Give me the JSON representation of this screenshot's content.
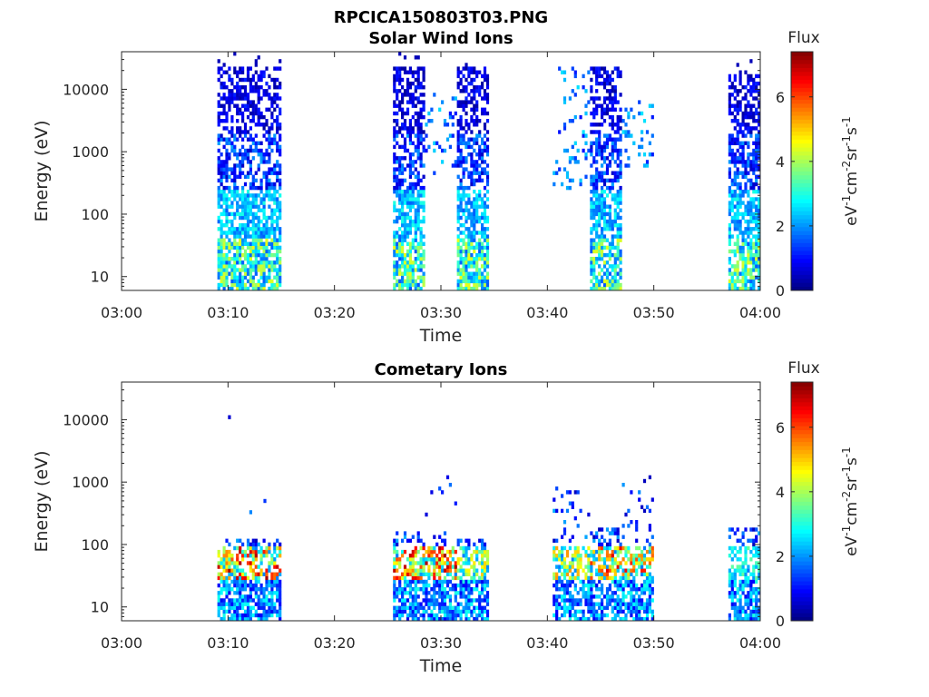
{
  "figure": {
    "title": "RPCICA150803T03.PNG"
  },
  "colors": {
    "background": "#ffffff",
    "axis": "#262626",
    "colormap": "jet"
  },
  "chart_data": [
    {
      "type": "heatmap",
      "title": "Solar Wind Ions",
      "xlabel": "Time",
      "ylabel": "Energy (eV)",
      "x_ticks": [
        "03:00",
        "03:10",
        "03:20",
        "03:30",
        "03:40",
        "03:50",
        "04:00"
      ],
      "xlim": [
        "03:00",
        "04:00"
      ],
      "y_scale": "log",
      "y_ticks": [
        "10",
        "100",
        "1000",
        "10000"
      ],
      "ylim": [
        6,
        40000
      ],
      "colorbar": {
        "title": "Flux",
        "label": "eV-1cm-2sr-1s-1",
        "ticks": [
          "0",
          "2",
          "4",
          "6"
        ],
        "range": [
          0,
          7.4
        ]
      },
      "seed": 11,
      "blocks": [
        {
          "t0": "03:09",
          "t1": "03:15",
          "kind": "sw",
          "emax": 24000
        },
        {
          "t0": "03:25:30",
          "t1": "03:28:30",
          "kind": "sw",
          "emax": 24000
        },
        {
          "t0": "03:28:30",
          "t1": "03:31:30",
          "kind": "sparse",
          "emin": 400,
          "emax": 9000
        },
        {
          "t0": "03:31:30",
          "t1": "03:34:30",
          "kind": "sw",
          "emax": 24000
        },
        {
          "t0": "03:40:30",
          "t1": "03:44",
          "kind": "sparse",
          "emin": 250,
          "emax": 22000
        },
        {
          "t0": "03:44",
          "t1": "03:47",
          "kind": "sw",
          "emax": 24000
        },
        {
          "t0": "03:47",
          "t1": "03:50",
          "kind": "sparse",
          "emin": 400,
          "emax": 9000
        },
        {
          "t0": "03:57",
          "t1": "04:00",
          "kind": "sw",
          "emax": 18000
        }
      ]
    },
    {
      "type": "heatmap",
      "title": "Cometary Ions",
      "xlabel": "Time",
      "ylabel": "Energy (eV)",
      "x_ticks": [
        "03:00",
        "03:10",
        "03:20",
        "03:30",
        "03:40",
        "03:50",
        "04:00"
      ],
      "xlim": [
        "03:00",
        "04:00"
      ],
      "y_scale": "log",
      "y_ticks": [
        "10",
        "100",
        "1000",
        "10000"
      ],
      "ylim": [
        6,
        40000
      ],
      "colorbar": {
        "title": "Flux",
        "label": "eV-1cm-2sr-1s-1",
        "ticks": [
          "0",
          "2",
          "4",
          "6"
        ],
        "range": [
          0,
          7.4
        ]
      },
      "seed": 29,
      "blocks": [
        {
          "t0": "03:09",
          "t1": "03:15",
          "kind": "com",
          "emax": 130,
          "peak": 7.2
        },
        {
          "t0": "03:25:30",
          "t1": "03:28:30",
          "kind": "com",
          "emax": 170,
          "peak": 7.0
        },
        {
          "t0": "03:28:30",
          "t1": "03:31:30",
          "kind": "com",
          "emax": 1200,
          "peak": 7.2
        },
        {
          "t0": "03:31:30",
          "t1": "03:34:30",
          "kind": "com",
          "emax": 120,
          "peak": 5.0
        },
        {
          "t0": "03:40:30",
          "t1": "03:44",
          "kind": "com",
          "emax": 900,
          "peak": 5.5
        },
        {
          "t0": "03:44",
          "t1": "03:47",
          "kind": "com",
          "emax": 190,
          "peak": 6.8
        },
        {
          "t0": "03:47",
          "t1": "03:50",
          "kind": "com",
          "emax": 1300,
          "peak": 6.5
        },
        {
          "t0": "03:57",
          "t1": "04:00",
          "kind": "com",
          "emax": 190,
          "peak": 3.5
        }
      ],
      "points": [
        {
          "t": "03:10",
          "e": 11000,
          "v": 0.6
        },
        {
          "t": "03:12",
          "e": 330,
          "v": 1.9
        },
        {
          "t": "03:13:20",
          "e": 500,
          "v": 1.3
        }
      ]
    }
  ]
}
